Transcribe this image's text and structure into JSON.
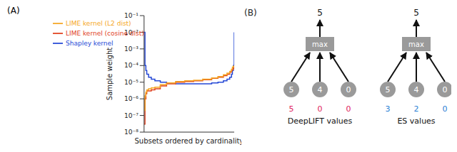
{
  "chart_data": {
    "type": "line",
    "title": "(A)",
    "y_label": "Sample weight",
    "x_label": "Subsets ordered by cardinality",
    "x": [
      0,
      1,
      2,
      3,
      5,
      8,
      12,
      18,
      25,
      35,
      45,
      55,
      65,
      75,
      82,
      88,
      92,
      95,
      97,
      98,
      99,
      100
    ],
    "xlim": [
      0,
      100
    ],
    "ylim": [
      1e-08,
      0.1
    ],
    "yticks": [
      {
        "value": 1e-08,
        "label": "10⁻⁸"
      },
      {
        "value": 1e-07,
        "label": "10⁻⁷"
      },
      {
        "value": 1e-06,
        "label": "10⁻⁶"
      },
      {
        "value": 1e-05,
        "label": "10⁻⁵"
      },
      {
        "value": 0.0001,
        "label": "10⁻⁴"
      },
      {
        "value": 0.001,
        "label": "10⁻³"
      },
      {
        "value": 0.01,
        "label": "10⁻²"
      },
      {
        "value": 0.1,
        "label": "10⁻¹"
      }
    ],
    "log": "y",
    "legend": "upper left",
    "tick_labels": "y",
    "series": [
      {
        "name": "Shapley kernel",
        "color": "#2548d6",
        "line_style": "step",
        "values": [
          0.01,
          0.0001,
          5e-05,
          3e-05,
          2e-05,
          1.5e-05,
          1.2e-05,
          1e-05,
          9e-06,
          8e-06,
          8e-06,
          8e-06,
          8e-06,
          9e-06,
          1e-05,
          1.2e-05,
          1.5e-05,
          2e-05,
          3e-05,
          5e-05,
          0.0001,
          0.01
        ]
      },
      {
        "name": "LIME kernel (cosine dist)",
        "color": "#e0401c",
        "line_style": "step",
        "values": [
          3e-08,
          1e-06,
          2e-06,
          3e-06,
          3e-06,
          3.5e-06,
          4e-06,
          6e-06,
          8e-06,
          1e-05,
          1.1e-05,
          1.2e-05,
          1.4e-05,
          1.7e-05,
          2e-05,
          2.5e-05,
          3e-05,
          4e-05,
          5e-05,
          6e-05,
          7e-05,
          8e-05
        ]
      },
      {
        "name": "LIME kernel (L2 dist)",
        "color": "#f5a623",
        "line_style": "step",
        "values": [
          2e-07,
          1.5e-06,
          2.5e-06,
          3.5e-06,
          4e-06,
          4.5e-06,
          5e-06,
          7e-06,
          9e-06,
          1.1e-05,
          1.2e-05,
          1.3e-05,
          1.5e-05,
          1.8e-05,
          2.2e-05,
          2.8e-05,
          3.5e-05,
          4.5e-05,
          6e-05,
          8e-05,
          9e-05,
          0.0001
        ]
      }
    ]
  },
  "diagram": {
    "label": "(B)",
    "trees": [
      {
        "operation": "max",
        "output": 5,
        "inputs": [
          5,
          4,
          0
        ],
        "attributions": [
          5,
          0,
          0
        ],
        "attribution_label": "DeepLIFT values",
        "color": "#e0245e"
      },
      {
        "operation": "max",
        "output": 5,
        "inputs": [
          5,
          4,
          0
        ],
        "attributions": [
          3,
          2,
          0
        ],
        "attribution_label": "ES values",
        "color": "#2a7fd4"
      }
    ]
  }
}
